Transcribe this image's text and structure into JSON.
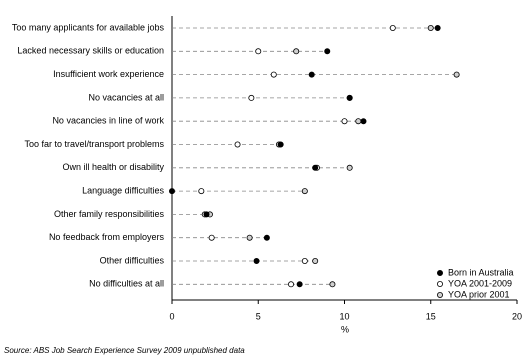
{
  "chart_data": {
    "type": "dot",
    "categories": [
      "Too many applicants for available jobs",
      "Lacked necessary skills or education",
      "Insufficient work experience",
      "No vacancies at all",
      "No vacancies in line of work",
      "Too far to travel/transport problems",
      "Own ill health or disability",
      "Language difficulties",
      "Other family responsibilities",
      "No feedback from employers",
      "Other difficulties",
      "No difficulties at all"
    ],
    "series": [
      {
        "name": "Born in Australia",
        "color": "#000000",
        "values": [
          15.4,
          9.0,
          8.1,
          10.3,
          11.1,
          6.3,
          8.3,
          0,
          2.0,
          5.5,
          4.9,
          7.4
        ]
      },
      {
        "name": "YOA 2001-2009",
        "color": "#ffffff",
        "values": [
          12.8,
          5.0,
          5.9,
          4.6,
          10.0,
          3.8,
          8.4,
          1.7,
          1.9,
          2.3,
          7.7,
          6.9
        ]
      },
      {
        "name": "YOA prior 2001",
        "color": "#d0d0d0",
        "values": [
          15.0,
          7.2,
          16.5,
          10.3,
          10.8,
          6.2,
          10.3,
          7.7,
          2.2,
          4.5,
          8.3,
          9.3
        ]
      }
    ],
    "xlim": [
      0,
      20
    ],
    "xticks": [
      0,
      5,
      10,
      15,
      20
    ],
    "xlabel": "%",
    "legend": "bottom-right",
    "source": "Source: ABS Job Search Experience Survey 2009 unpublished data"
  }
}
